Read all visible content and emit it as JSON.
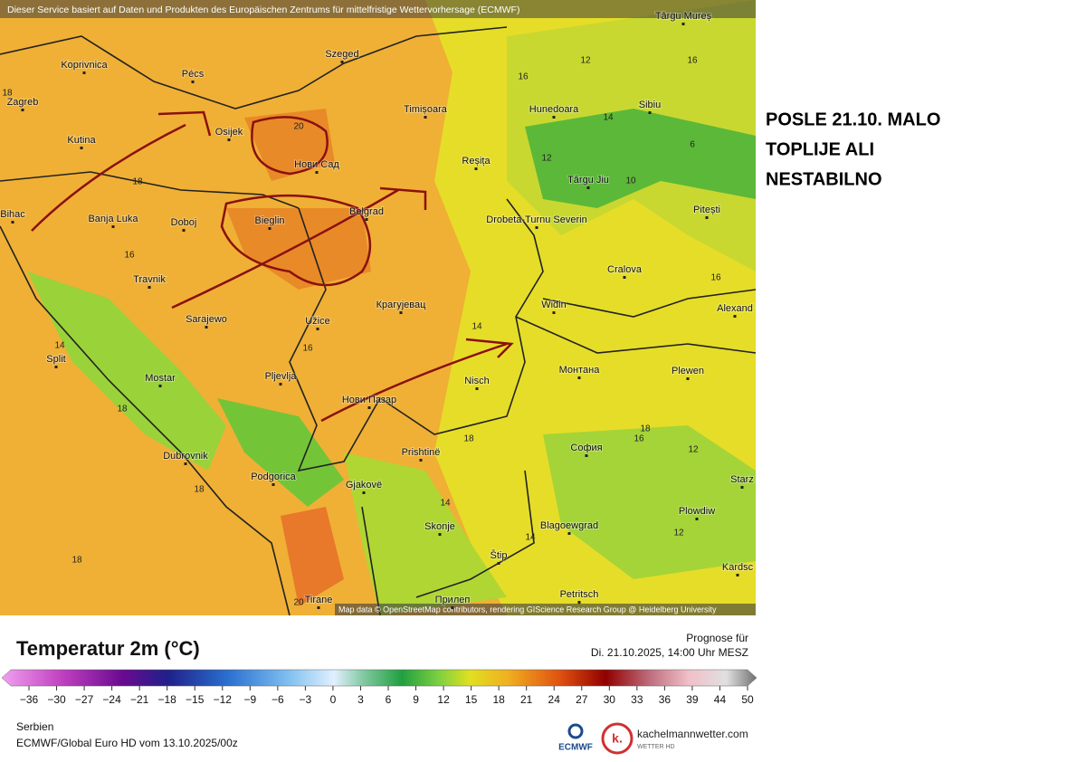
{
  "header_note": "Dieser Service basiert auf Daten und Produkten des Europäischen Zentrums für mittelfristige Wettervorhersage (ECMWF)",
  "annotation": {
    "lines": [
      "POSLE 21.10. MALO",
      "TOPLIJE ALI",
      "NESTABILNO"
    ]
  },
  "cities": [
    "Târgu Mureș",
    "Koprivnica",
    "Pécs",
    "Szeged",
    "Zagreb",
    "Osijek",
    "Timișoara",
    "Hunedoara",
    "Sibiu",
    "Kutina",
    "Нови Сад",
    "Reșița",
    "Târgu Jiu",
    "Bihac",
    "Banja Luka",
    "Doboj",
    "Bieglin",
    "Belgrad",
    "Drobeta-Turnu Severin",
    "Pitești",
    "Cralova",
    "Travnik",
    "Крагујевац",
    "Widin",
    "Alexand",
    "Sarajewo",
    "Užice",
    "Split",
    "Mostar",
    "Pljevlja",
    "Nisch",
    "Монтана",
    "Plewen",
    "Нови Пазар",
    "Dubrovnik",
    "Prishtinë",
    "София",
    "Podgorica",
    "Gjakovë",
    "Starz",
    "Plowdiw",
    "Skonje",
    "Blagoewgrad",
    "Štip",
    "Kardsc",
    "Tirane",
    "Прилеп",
    "Petritsch"
  ],
  "contour_labels": [
    "18",
    "12",
    "16",
    "16",
    "14",
    "20",
    "12",
    "10",
    "6",
    "18",
    "16",
    "16",
    "14",
    "16",
    "14",
    "18",
    "18",
    "18",
    "16",
    "12",
    "18",
    "14",
    "14",
    "12",
    "18",
    "20"
  ],
  "attribution": "Map data © OpenStreetMap contributors, rendering GIScience Research Group @ Heidelberg University",
  "legend": {
    "title": "Temperatur 2m (°C)",
    "ticks": [
      "−36",
      "−30",
      "−27",
      "−24",
      "−21",
      "−18",
      "−15",
      "−12",
      "−9",
      "−6",
      "−3",
      "0",
      "3",
      "6",
      "9",
      "12",
      "15",
      "18",
      "21",
      "24",
      "27",
      "30",
      "33",
      "36",
      "39",
      "44",
      "50"
    ]
  },
  "forecast": {
    "label": "Prognose für",
    "time": "Di. 21.10.2025, 14:00 Uhr MESZ"
  },
  "footer": {
    "region": "Serbien",
    "model": "ECMWF/Global Euro HD vom  13.10.2025/00z"
  },
  "logos": {
    "ecmwf": "ECMWF",
    "site_icon": "k.",
    "site": "kachelmannwetter.com",
    "site_sub": "WETTER HD"
  }
}
